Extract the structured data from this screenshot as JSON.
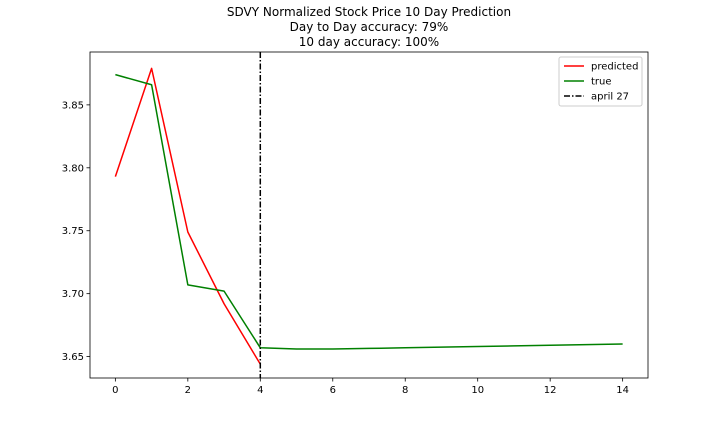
{
  "chart_data": {
    "type": "line",
    "title_lines": [
      "SDVY Normalized Stock Price 10 Day Prediction",
      "Day to Day accuracy: 79%",
      "10 day accuracy: 100%"
    ],
    "xlabel": "",
    "ylabel": "",
    "xlim": [
      -0.7,
      14.7
    ],
    "ylim": [
      3.633,
      3.892
    ],
    "xticks": [
      0,
      2,
      4,
      6,
      8,
      10,
      12,
      14
    ],
    "yticks": [
      3.65,
      3.7,
      3.75,
      3.8,
      3.85
    ],
    "ytick_labels": [
      "3.65",
      "3.70",
      "3.75",
      "3.80",
      "3.85"
    ],
    "grid": false,
    "legend_position": "top-right",
    "series": [
      {
        "name": "predicted",
        "color": "#ff0000",
        "x": [
          0,
          1,
          2,
          3,
          4
        ],
        "y": [
          3.793,
          3.879,
          3.749,
          3.692,
          3.644
        ]
      },
      {
        "name": "true",
        "color": "#008000",
        "x": [
          0,
          1,
          2,
          3,
          4,
          5,
          6,
          7,
          8,
          9,
          10,
          11,
          12,
          13,
          14
        ],
        "y": [
          3.874,
          3.866,
          3.707,
          3.702,
          3.657,
          3.656,
          3.656,
          3.6565,
          3.657,
          3.6575,
          3.658,
          3.6585,
          3.659,
          3.6595,
          3.66
        ]
      }
    ],
    "vline": {
      "name": "april 27",
      "x": 4,
      "color": "#000000",
      "style": "dashdot"
    }
  }
}
